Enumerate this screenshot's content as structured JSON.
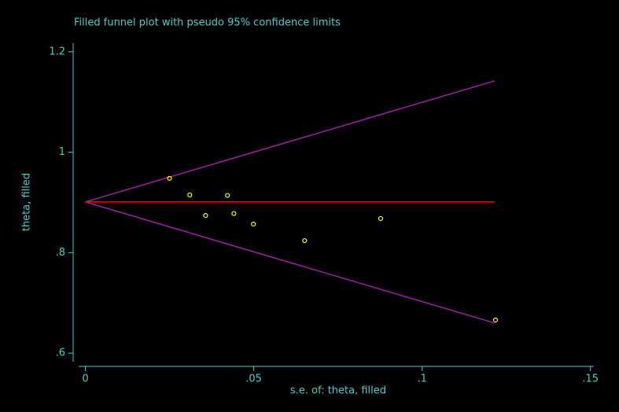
{
  "chart_data": {
    "type": "scatter",
    "title": "Filled funnel plot with pseudo 95% confidence limits",
    "x_label": "s.e. of: theta, filled",
    "y_label": "theta, filled",
    "xlim": [
      -0.002,
      0.151
    ],
    "ylim": [
      0.583,
      1.217
    ],
    "xticks": [
      0,
      {
        "value": 0.05,
        "label": ".05"
      },
      {
        "value": 0.1,
        "label": ".1"
      },
      {
        "value": 0.15,
        "label": ".15"
      }
    ],
    "yticks": [
      {
        "value": 0.6,
        "label": ".6"
      },
      {
        "value": 0.8,
        "label": ".8"
      },
      1,
      1.2
    ],
    "axis_color": "#40d0d0",
    "series": [
      {
        "type": "line",
        "color": "#a020a0",
        "x": [
          0,
          0.1215
        ],
        "values": [
          0.901,
          1.142
        ]
      },
      {
        "type": "line",
        "color": "#a020a0",
        "x": [
          0,
          0.1215
        ],
        "values": [
          0.901,
          0.66
        ]
      },
      {
        "type": "line",
        "color": "#ff0000",
        "x": [
          0,
          0.1215
        ],
        "values": [
          0.901,
          0.901
        ]
      },
      {
        "type": "scatter",
        "color": "#ffff00",
        "x": [
          0.025,
          0.031,
          0.0357,
          0.0422,
          0.0441,
          0.0499,
          0.0651,
          0.0877,
          0.1218
        ],
        "values": [
          0.948,
          0.915,
          0.874,
          0.914,
          0.878,
          0.857,
          0.824,
          0.868,
          0.666
        ]
      }
    ]
  }
}
